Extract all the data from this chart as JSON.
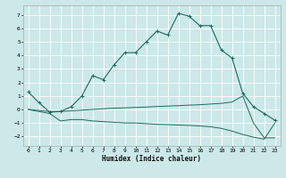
{
  "xlabel": "Humidex (Indice chaleur)",
  "bg_color": "#cce8e8",
  "grid_color": "#ffffff",
  "line_color": "#1a6b5a",
  "xlim": [
    -0.5,
    23.5
  ],
  "ylim": [
    -2.7,
    7.7
  ],
  "xticks": [
    0,
    1,
    2,
    3,
    4,
    5,
    6,
    7,
    8,
    9,
    10,
    11,
    12,
    13,
    14,
    15,
    16,
    17,
    18,
    19,
    20,
    21,
    22,
    23
  ],
  "yticks": [
    -2,
    -1,
    0,
    1,
    2,
    3,
    4,
    5,
    6,
    7
  ],
  "series1_x": [
    0,
    1,
    2,
    3,
    4,
    5,
    6,
    7,
    8,
    9,
    10,
    11,
    12,
    13,
    14,
    15,
    16,
    17,
    18,
    19,
    20,
    21,
    22,
    23
  ],
  "series1_y": [
    1.3,
    0.5,
    -0.2,
    -0.15,
    0.2,
    1.0,
    2.5,
    2.2,
    3.3,
    4.2,
    4.2,
    5.0,
    5.8,
    5.5,
    7.1,
    6.9,
    6.2,
    6.2,
    4.4,
    3.8,
    1.2,
    0.2,
    -0.3,
    -0.8
  ],
  "series2_x": [
    0,
    2,
    3,
    4,
    5,
    6,
    7,
    8,
    9,
    10,
    11,
    12,
    13,
    14,
    15,
    16,
    17,
    18,
    19,
    20,
    21,
    22,
    23
  ],
  "series2_y": [
    0.0,
    -0.15,
    -0.15,
    -0.1,
    -0.05,
    0.0,
    0.05,
    0.1,
    0.12,
    0.15,
    0.18,
    0.22,
    0.25,
    0.28,
    0.32,
    0.35,
    0.4,
    0.45,
    0.55,
    1.0,
    -1.0,
    -2.1,
    -2.1
  ],
  "series3_x": [
    0,
    2,
    3,
    4,
    5,
    6,
    7,
    8,
    9,
    10,
    11,
    12,
    13,
    14,
    15,
    16,
    17,
    18,
    19,
    20,
    21,
    22,
    23
  ],
  "series3_y": [
    0.0,
    -0.3,
    -0.85,
    -0.75,
    -0.75,
    -0.85,
    -0.9,
    -0.95,
    -1.0,
    -1.0,
    -1.05,
    -1.1,
    -1.12,
    -1.15,
    -1.18,
    -1.22,
    -1.28,
    -1.4,
    -1.6,
    -1.85,
    -2.05,
    -2.2,
    -1.0
  ]
}
